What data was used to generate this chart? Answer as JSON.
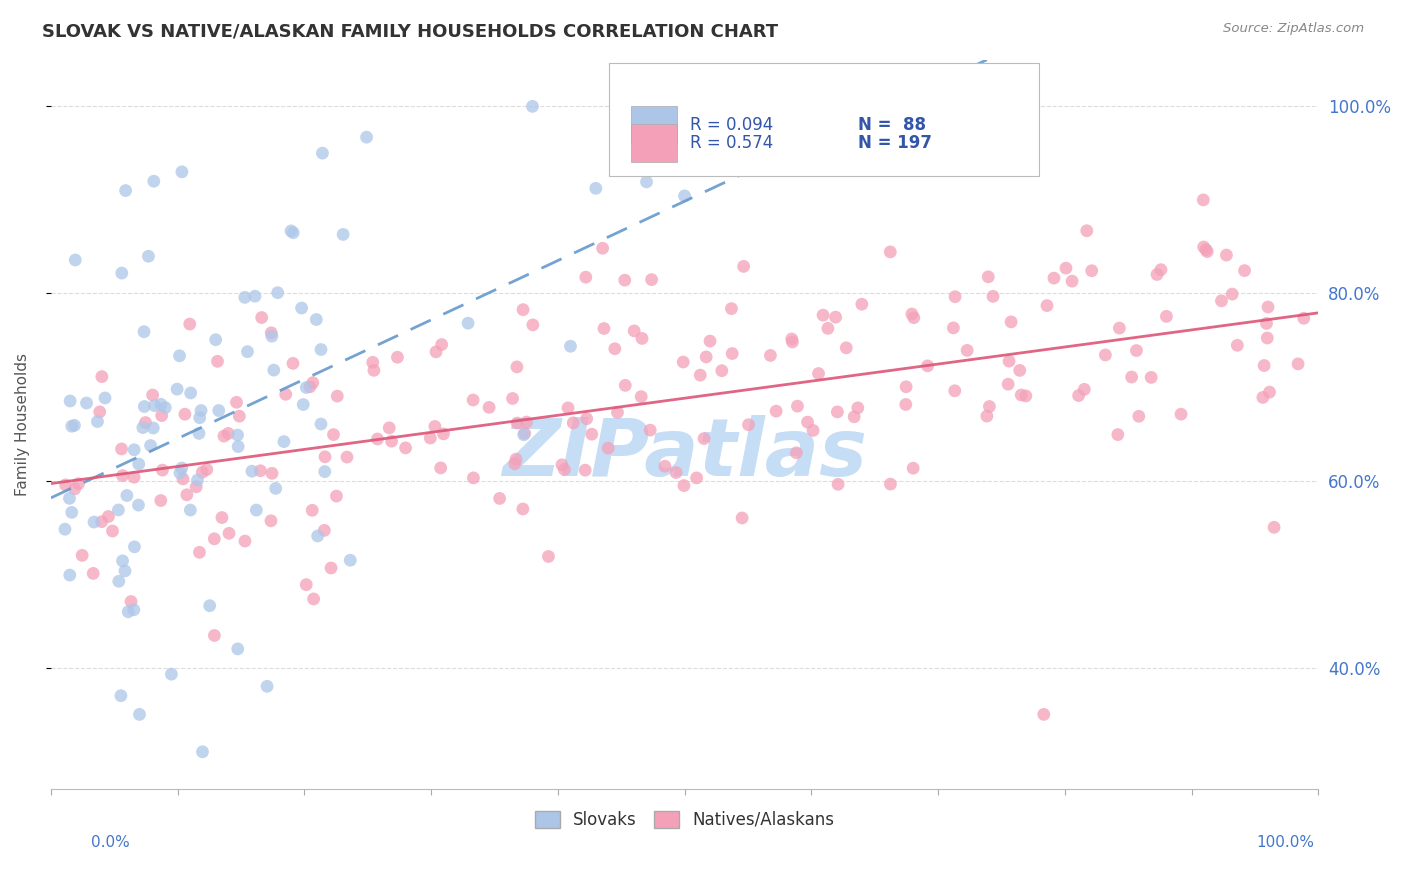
{
  "title": "SLOVAK VS NATIVE/ALASKAN FAMILY HOUSEHOLDS CORRELATION CHART",
  "source": "Source: ZipAtlas.com",
  "ylabel": "Family Households",
  "yticks": [
    "40.0%",
    "60.0%",
    "80.0%",
    "100.0%"
  ],
  "ytick_vals": [
    0.4,
    0.6,
    0.8,
    1.0
  ],
  "xlim": [
    0.0,
    1.0
  ],
  "ylim": [
    0.27,
    1.05
  ],
  "r_slovak": 0.094,
  "n_slovak": 88,
  "r_native": 0.574,
  "n_native": 197,
  "color_slovak": "#adc6e8",
  "color_native": "#f4a0b8",
  "trend_slovak_color": "#6699cc",
  "trend_native_color": "#dd5577",
  "background_color": "#ffffff",
  "grid_color": "#dddddd",
  "watermark": "ZIPatlas",
  "watermark_color": "#c5ddf5",
  "legend_text_color": "#3355aa",
  "axis_label_color": "#4477cc",
  "title_color": "#333333",
  "source_color": "#888888"
}
